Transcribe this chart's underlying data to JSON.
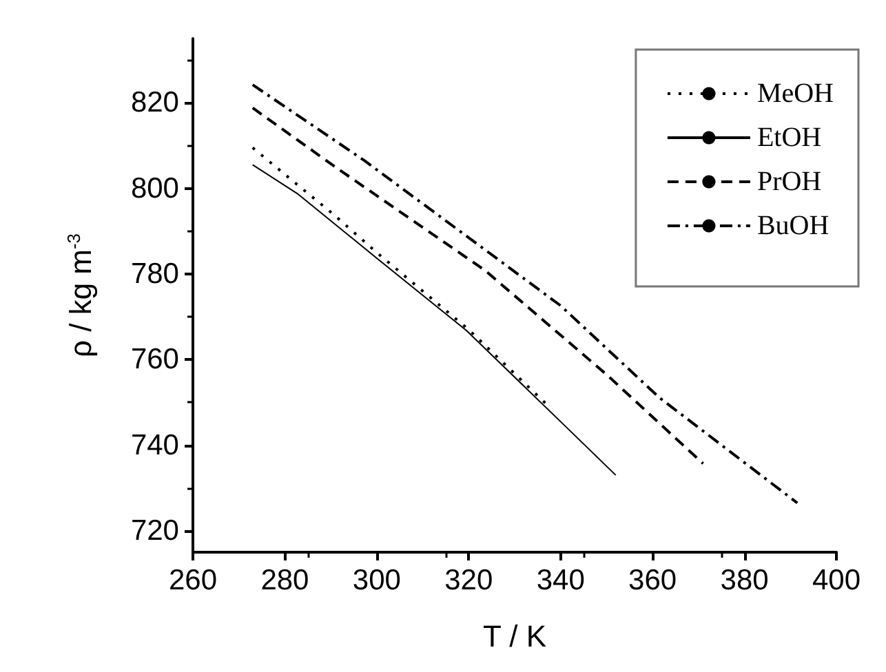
{
  "chart_data": {
    "type": "line",
    "xlabel": "T / K",
    "ylabel": "ρ / kg m$^{-3}$",
    "xlim": [
      260,
      400
    ],
    "xticks": [
      260,
      280,
      300,
      320,
      340,
      360,
      380,
      400
    ],
    "ylim": [
      715,
      835
    ],
    "yticks": [
      720,
      740,
      760,
      780,
      800,
      820
    ],
    "grid": false,
    "legend": "top right",
    "marker": "none",
    "series": [
      {
        "name": "MeOH",
        "color": "#000000",
        "line_style": "dotted",
        "x": [
          273,
          282,
          290.5,
          300,
          320,
          337
        ],
        "values": [
          809.5,
          801.5,
          794,
          785,
          767,
          749.5
        ]
      },
      {
        "name": "EtOH",
        "color": "#000000",
        "line_style": "solid",
        "x": [
          273,
          282.7,
          300,
          319.5,
          340,
          352
        ],
        "values": [
          805.5,
          798.8,
          783.7,
          766.8,
          745.5,
          733
        ]
      },
      {
        "name": "PrOH",
        "color": "#000000",
        "line_style": "dashed",
        "x": [
          273,
          291.5,
          323.6,
          350,
          371
        ],
        "values": [
          818.8,
          804.6,
          780.8,
          756.5,
          735.7
        ]
      },
      {
        "name": "BuOH",
        "color": "#000000",
        "line_style": "dashdot",
        "x": [
          273,
          297.3,
          340,
          361.5,
          391.5
        ],
        "values": [
          824.2,
          806.5,
          772.6,
          751.1,
          726.5
        ]
      }
    ]
  }
}
